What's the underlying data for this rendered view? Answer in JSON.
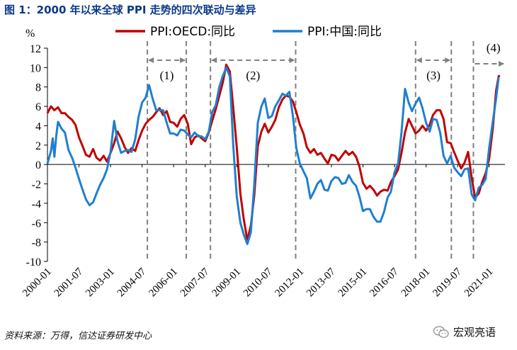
{
  "header": {
    "title": "图 1：2000 年以来全球 PPI 走势的四次联动与差异"
  },
  "footer": {
    "source": "资料来源：万得，信达证券研发中心",
    "brand": "宏观亮语"
  },
  "colors": {
    "series_oecd": "#c00000",
    "series_china": "#1f7fd0",
    "axis": "#000000",
    "dash": "#808080"
  },
  "chart_data": {
    "type": "line",
    "ylabel": "%",
    "ylim": [
      -10,
      12
    ],
    "yticks": [
      -10,
      -8,
      -6,
      -4,
      -2,
      0,
      2,
      4,
      6,
      8,
      10,
      12
    ],
    "xlim": [
      2000.0,
      2021.75
    ],
    "xtick_labels": [
      "2000-01",
      "2001-07",
      "2003-01",
      "2004-07",
      "2006-01",
      "2007-07",
      "2009-01",
      "2010-07",
      "2012-01",
      "2013-07",
      "2015-01",
      "2016-07",
      "2018-01",
      "2019-07",
      "2021-01"
    ],
    "legend": "top",
    "grid": false,
    "annotations": [
      {
        "label": "(1)",
        "x_start": 2004.75,
        "x_end": 2006.6
      },
      {
        "label": "(2)",
        "x_start": 2007.75,
        "x_end": 2011.8
      },
      {
        "label": "(3)",
        "x_start": 2017.5,
        "x_end": 2019.2
      },
      {
        "label": "(4)",
        "x_start": 2020.25,
        "x_end": 2021.75
      }
    ],
    "series": [
      {
        "name": "PPI:OECD:同比",
        "points": [
          [
            2000.0,
            5.3
          ],
          [
            2000.17,
            6.0
          ],
          [
            2000.33,
            5.6
          ],
          [
            2000.5,
            5.9
          ],
          [
            2000.67,
            5.3
          ],
          [
            2000.83,
            5.3
          ],
          [
            2001.0,
            4.9
          ],
          [
            2001.17,
            4.6
          ],
          [
            2001.33,
            4.1
          ],
          [
            2001.5,
            2.8
          ],
          [
            2001.67,
            1.9
          ],
          [
            2001.83,
            1.0
          ],
          [
            2002.0,
            0.8
          ],
          [
            2002.17,
            1.6
          ],
          [
            2002.33,
            0.7
          ],
          [
            2002.5,
            0.4
          ],
          [
            2002.67,
            0.9
          ],
          [
            2002.83,
            0.3
          ],
          [
            2003.0,
            1.2
          ],
          [
            2003.17,
            2.2
          ],
          [
            2003.33,
            3.4
          ],
          [
            2003.5,
            2.7
          ],
          [
            2003.67,
            1.8
          ],
          [
            2003.83,
            1.2
          ],
          [
            2004.0,
            1.7
          ],
          [
            2004.17,
            1.4
          ],
          [
            2004.33,
            2.5
          ],
          [
            2004.5,
            3.5
          ],
          [
            2004.67,
            4.2
          ],
          [
            2004.83,
            4.6
          ],
          [
            2005.0,
            4.9
          ],
          [
            2005.17,
            5.4
          ],
          [
            2005.33,
            5.8
          ],
          [
            2005.5,
            5.1
          ],
          [
            2005.67,
            5.5
          ],
          [
            2005.83,
            4.4
          ],
          [
            2006.0,
            4.3
          ],
          [
            2006.17,
            3.9
          ],
          [
            2006.33,
            4.7
          ],
          [
            2006.5,
            5.1
          ],
          [
            2006.67,
            4.2
          ],
          [
            2006.83,
            2.1
          ],
          [
            2007.0,
            2.8
          ],
          [
            2007.17,
            3.0
          ],
          [
            2007.33,
            2.7
          ],
          [
            2007.5,
            2.4
          ],
          [
            2007.67,
            3.3
          ],
          [
            2007.83,
            4.5
          ],
          [
            2008.0,
            5.7
          ],
          [
            2008.17,
            7.1
          ],
          [
            2008.33,
            8.4
          ],
          [
            2008.5,
            10.3
          ],
          [
            2008.67,
            9.6
          ],
          [
            2008.83,
            5.9
          ],
          [
            2009.0,
            1.8
          ],
          [
            2009.17,
            -3.0
          ],
          [
            2009.33,
            -5.6
          ],
          [
            2009.5,
            -7.8
          ],
          [
            2009.67,
            -6.3
          ],
          [
            2009.83,
            -3.2
          ],
          [
            2010.0,
            1.9
          ],
          [
            2010.17,
            3.4
          ],
          [
            2010.33,
            4.2
          ],
          [
            2010.5,
            3.3
          ],
          [
            2010.67,
            3.9
          ],
          [
            2010.83,
            4.6
          ],
          [
            2011.0,
            5.9
          ],
          [
            2011.17,
            6.7
          ],
          [
            2011.33,
            7.1
          ],
          [
            2011.5,
            7.0
          ],
          [
            2011.67,
            6.5
          ],
          [
            2011.83,
            5.4
          ],
          [
            2012.0,
            4.1
          ],
          [
            2012.17,
            3.2
          ],
          [
            2012.33,
            1.8
          ],
          [
            2012.5,
            1.2
          ],
          [
            2012.67,
            1.6
          ],
          [
            2012.83,
            1.0
          ],
          [
            2013.0,
            1.2
          ],
          [
            2013.17,
            0.6
          ],
          [
            2013.33,
            0.1
          ],
          [
            2013.5,
            1.0
          ],
          [
            2013.67,
            0.9
          ],
          [
            2013.83,
            0.4
          ],
          [
            2014.0,
            0.9
          ],
          [
            2014.17,
            1.4
          ],
          [
            2014.33,
            1.0
          ],
          [
            2014.5,
            1.3
          ],
          [
            2014.67,
            0.8
          ],
          [
            2014.83,
            -0.2
          ],
          [
            2015.0,
            -1.9
          ],
          [
            2015.17,
            -2.5
          ],
          [
            2015.33,
            -2.2
          ],
          [
            2015.5,
            -2.6
          ],
          [
            2015.67,
            -3.2
          ],
          [
            2015.83,
            -2.8
          ],
          [
            2016.0,
            -2.6
          ],
          [
            2016.17,
            -2.7
          ],
          [
            2016.33,
            -1.8
          ],
          [
            2016.5,
            -1.2
          ],
          [
            2016.67,
            -0.5
          ],
          [
            2016.83,
            1.2
          ],
          [
            2017.0,
            3.3
          ],
          [
            2017.17,
            4.7
          ],
          [
            2017.33,
            4.0
          ],
          [
            2017.5,
            3.2
          ],
          [
            2017.67,
            3.5
          ],
          [
            2017.83,
            4.0
          ],
          [
            2018.0,
            3.5
          ],
          [
            2018.17,
            4.1
          ],
          [
            2018.33,
            5.1
          ],
          [
            2018.5,
            5.6
          ],
          [
            2018.67,
            5.6
          ],
          [
            2018.83,
            4.7
          ],
          [
            2019.0,
            2.3
          ],
          [
            2019.17,
            2.2
          ],
          [
            2019.33,
            1.3
          ],
          [
            2019.5,
            0.4
          ],
          [
            2019.67,
            -0.4
          ],
          [
            2019.83,
            0.2
          ],
          [
            2020.0,
            1.3
          ],
          [
            2020.17,
            -1.4
          ],
          [
            2020.33,
            -3.4
          ],
          [
            2020.5,
            -3.0
          ],
          [
            2020.67,
            -1.8
          ],
          [
            2020.83,
            -0.9
          ],
          [
            2021.0,
            0.6
          ],
          [
            2021.17,
            3.7
          ],
          [
            2021.33,
            7.6
          ],
          [
            2021.45,
            9.1
          ],
          [
            2021.5,
            9.2
          ]
        ]
      },
      {
        "name": "PPI:中国:同比",
        "points": [
          [
            2000.0,
            0.1
          ],
          [
            2000.17,
            1.4
          ],
          [
            2000.25,
            2.7
          ],
          [
            2000.33,
            0.8
          ],
          [
            2000.42,
            3.0
          ],
          [
            2000.5,
            4.4
          ],
          [
            2000.67,
            3.7
          ],
          [
            2000.83,
            3.3
          ],
          [
            2001.0,
            1.5
          ],
          [
            2001.17,
            0.7
          ],
          [
            2001.33,
            -0.3
          ],
          [
            2001.5,
            -1.5
          ],
          [
            2001.67,
            -2.6
          ],
          [
            2001.83,
            -3.6
          ],
          [
            2002.0,
            -4.2
          ],
          [
            2002.17,
            -3.9
          ],
          [
            2002.33,
            -3.0
          ],
          [
            2002.5,
            -2.1
          ],
          [
            2002.67,
            -1.4
          ],
          [
            2002.83,
            -0.5
          ],
          [
            2003.0,
            1.3
          ],
          [
            2003.17,
            4.5
          ],
          [
            2003.33,
            2.4
          ],
          [
            2003.5,
            1.2
          ],
          [
            2003.67,
            1.4
          ],
          [
            2003.83,
            1.5
          ],
          [
            2004.0,
            1.3
          ],
          [
            2004.17,
            2.6
          ],
          [
            2004.33,
            4.9
          ],
          [
            2004.5,
            6.4
          ],
          [
            2004.67,
            6.9
          ],
          [
            2004.83,
            8.2
          ],
          [
            2005.0,
            6.8
          ],
          [
            2005.17,
            5.6
          ],
          [
            2005.33,
            5.6
          ],
          [
            2005.5,
            5.6
          ],
          [
            2005.67,
            4.3
          ],
          [
            2005.83,
            3.2
          ],
          [
            2006.0,
            3.2
          ],
          [
            2006.17,
            3.0
          ],
          [
            2006.33,
            3.6
          ],
          [
            2006.5,
            3.5
          ],
          [
            2006.67,
            3.1
          ],
          [
            2006.83,
            2.8
          ],
          [
            2007.0,
            3.3
          ],
          [
            2007.17,
            2.9
          ],
          [
            2007.33,
            2.9
          ],
          [
            2007.5,
            2.6
          ],
          [
            2007.67,
            3.4
          ],
          [
            2007.83,
            5.4
          ],
          [
            2008.0,
            6.1
          ],
          [
            2008.17,
            8.0
          ],
          [
            2008.33,
            9.1
          ],
          [
            2008.5,
            10.0
          ],
          [
            2008.67,
            9.1
          ],
          [
            2008.83,
            2.0
          ],
          [
            2009.0,
            -3.3
          ],
          [
            2009.17,
            -6.0
          ],
          [
            2009.33,
            -7.2
          ],
          [
            2009.5,
            -8.2
          ],
          [
            2009.67,
            -7.0
          ],
          [
            2009.83,
            -2.1
          ],
          [
            2010.0,
            4.3
          ],
          [
            2010.17,
            6.0
          ],
          [
            2010.33,
            6.8
          ],
          [
            2010.5,
            4.8
          ],
          [
            2010.67,
            5.0
          ],
          [
            2010.83,
            6.0
          ],
          [
            2011.0,
            6.6
          ],
          [
            2011.17,
            7.3
          ],
          [
            2011.33,
            7.1
          ],
          [
            2011.5,
            7.5
          ],
          [
            2011.67,
            5.0
          ],
          [
            2011.83,
            1.7
          ],
          [
            2012.0,
            0.1
          ],
          [
            2012.17,
            -0.7
          ],
          [
            2012.33,
            -1.4
          ],
          [
            2012.5,
            -3.5
          ],
          [
            2012.67,
            -2.8
          ],
          [
            2012.83,
            -2.0
          ],
          [
            2013.0,
            -1.6
          ],
          [
            2013.17,
            -2.6
          ],
          [
            2013.33,
            -2.7
          ],
          [
            2013.5,
            -1.7
          ],
          [
            2013.67,
            -1.3
          ],
          [
            2013.83,
            -1.4
          ],
          [
            2014.0,
            -2.0
          ],
          [
            2014.17,
            -1.9
          ],
          [
            2014.33,
            -1.1
          ],
          [
            2014.5,
            -1.8
          ],
          [
            2014.67,
            -2.2
          ],
          [
            2014.83,
            -3.3
          ],
          [
            2015.0,
            -4.8
          ],
          [
            2015.17,
            -4.6
          ],
          [
            2015.33,
            -4.6
          ],
          [
            2015.5,
            -5.4
          ],
          [
            2015.67,
            -5.9
          ],
          [
            2015.83,
            -5.9
          ],
          [
            2016.0,
            -4.9
          ],
          [
            2016.17,
            -3.4
          ],
          [
            2016.33,
            -2.8
          ],
          [
            2016.5,
            -0.8
          ],
          [
            2016.67,
            0.1
          ],
          [
            2016.83,
            3.3
          ],
          [
            2017.0,
            7.8
          ],
          [
            2017.17,
            6.4
          ],
          [
            2017.33,
            5.5
          ],
          [
            2017.5,
            6.3
          ],
          [
            2017.67,
            6.9
          ],
          [
            2017.83,
            5.8
          ],
          [
            2018.0,
            4.3
          ],
          [
            2018.17,
            3.4
          ],
          [
            2018.33,
            4.7
          ],
          [
            2018.5,
            4.6
          ],
          [
            2018.67,
            3.3
          ],
          [
            2018.83,
            0.9
          ],
          [
            2019.0,
            0.1
          ],
          [
            2019.17,
            0.9
          ],
          [
            2019.33,
            -0.3
          ],
          [
            2019.5,
            -0.8
          ],
          [
            2019.67,
            -1.2
          ],
          [
            2019.83,
            -0.5
          ],
          [
            2020.0,
            -0.4
          ],
          [
            2020.17,
            -3.1
          ],
          [
            2020.33,
            -3.7
          ],
          [
            2020.5,
            -2.4
          ],
          [
            2020.67,
            -2.1
          ],
          [
            2020.83,
            -1.5
          ],
          [
            2021.0,
            1.7
          ],
          [
            2021.17,
            4.4
          ],
          [
            2021.33,
            6.8
          ],
          [
            2021.45,
            9.0
          ]
        ]
      }
    ]
  }
}
